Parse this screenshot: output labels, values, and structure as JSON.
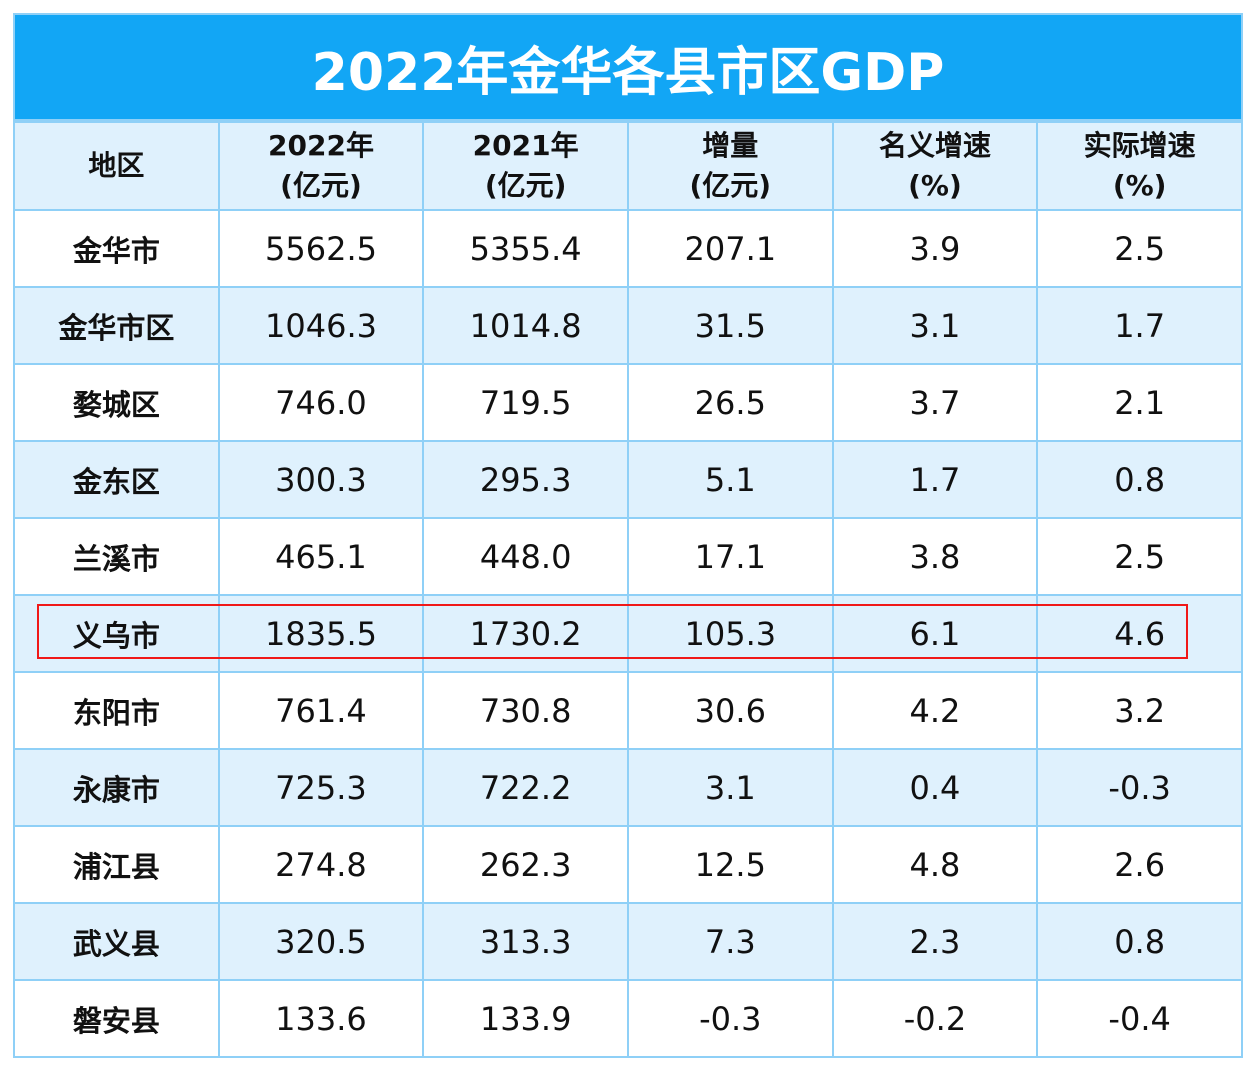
{
  "chart_data": {
    "type": "table",
    "title": "2022年金华各县市区GDP",
    "columns": [
      [
        "地区"
      ],
      [
        "2022年",
        "(亿元)"
      ],
      [
        "2021年",
        "(亿元)"
      ],
      [
        "增量",
        "(亿元)"
      ],
      [
        "名义增速",
        "(%)"
      ],
      [
        "实际增速",
        "(%)"
      ]
    ],
    "rows": [
      [
        "金华市",
        "5562.5",
        "5355.4",
        "207.1",
        "3.9",
        "2.5"
      ],
      [
        "金华市区",
        "1046.3",
        "1014.8",
        "31.5",
        "3.1",
        "1.7"
      ],
      [
        "婺城区",
        "746.0",
        "719.5",
        "26.5",
        "3.7",
        "2.1"
      ],
      [
        "金东区",
        "300.3",
        "295.3",
        "5.1",
        "1.7",
        "0.8"
      ],
      [
        "兰溪市",
        "465.1",
        "448.0",
        "17.1",
        "3.8",
        "2.5"
      ],
      [
        "义乌市",
        "1835.5",
        "1730.2",
        "105.3",
        "6.1",
        "4.6"
      ],
      [
        "东阳市",
        "761.4",
        "730.8",
        "30.6",
        "4.2",
        "3.2"
      ],
      [
        "永康市",
        "725.3",
        "722.2",
        "3.1",
        "0.4",
        "-0.3"
      ],
      [
        "浦江县",
        "274.8",
        "262.3",
        "12.5",
        "4.8",
        "2.6"
      ],
      [
        "武义县",
        "320.5",
        "313.3",
        "7.3",
        "2.3",
        "0.8"
      ],
      [
        "磐安县",
        "133.6",
        "133.9",
        "-0.3",
        "-0.2",
        "-0.4"
      ]
    ],
    "highlighted_row": "义乌市",
    "colors": {
      "title_bg": "#12a6f5",
      "header_bg": "#dff1fd",
      "border": "#8fd0f7",
      "highlight": "#f01818"
    }
  }
}
